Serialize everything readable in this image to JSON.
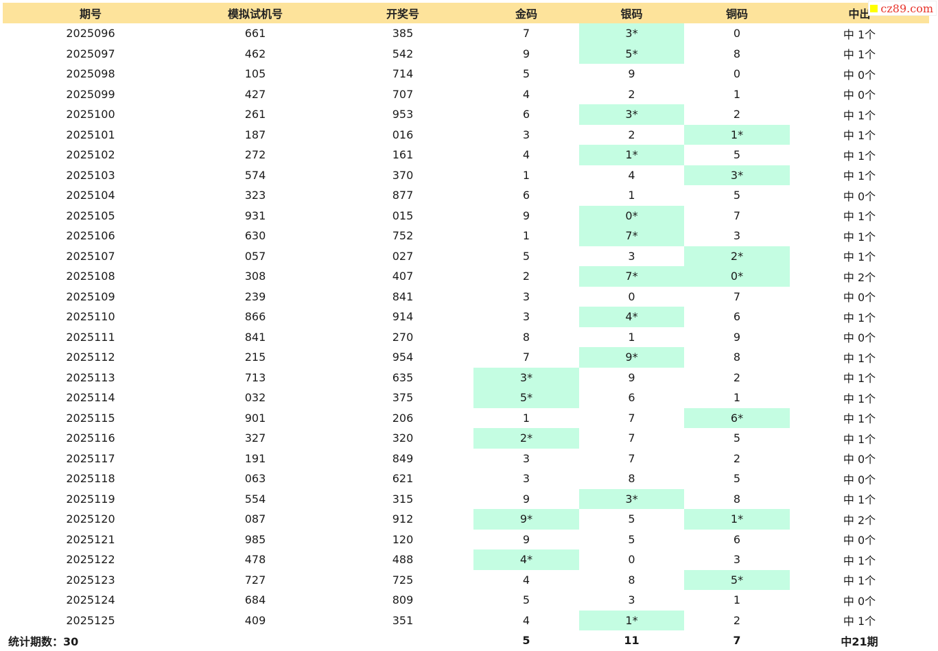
{
  "watermark": "cz89.com",
  "colors": {
    "header_bg": "#fde39b",
    "hit_bg": "#c4fde2"
  },
  "table": {
    "columns": [
      "期号",
      "模拟试机号",
      "开奖号",
      "金码",
      "银码",
      "铜码",
      "中出"
    ],
    "rows": [
      {
        "period": "2025096",
        "sim": "661",
        "draw": "385",
        "gold": "7",
        "silver": "3*",
        "bronze": "0",
        "result": "中 1个"
      },
      {
        "period": "2025097",
        "sim": "462",
        "draw": "542",
        "gold": "9",
        "silver": "5*",
        "bronze": "8",
        "result": "中 1个"
      },
      {
        "period": "2025098",
        "sim": "105",
        "draw": "714",
        "gold": "5",
        "silver": "9",
        "bronze": "0",
        "result": "中 0个"
      },
      {
        "period": "2025099",
        "sim": "427",
        "draw": "707",
        "gold": "4",
        "silver": "2",
        "bronze": "1",
        "result": "中 0个"
      },
      {
        "period": "2025100",
        "sim": "261",
        "draw": "953",
        "gold": "6",
        "silver": "3*",
        "bronze": "2",
        "result": "中 1个"
      },
      {
        "period": "2025101",
        "sim": "187",
        "draw": "016",
        "gold": "3",
        "silver": "2",
        "bronze": "1*",
        "result": "中 1个"
      },
      {
        "period": "2025102",
        "sim": "272",
        "draw": "161",
        "gold": "4",
        "silver": "1*",
        "bronze": "5",
        "result": "中 1个"
      },
      {
        "period": "2025103",
        "sim": "574",
        "draw": "370",
        "gold": "1",
        "silver": "4",
        "bronze": "3*",
        "result": "中 1个"
      },
      {
        "period": "2025104",
        "sim": "323",
        "draw": "877",
        "gold": "6",
        "silver": "1",
        "bronze": "5",
        "result": "中 0个"
      },
      {
        "period": "2025105",
        "sim": "931",
        "draw": "015",
        "gold": "9",
        "silver": "0*",
        "bronze": "7",
        "result": "中 1个"
      },
      {
        "period": "2025106",
        "sim": "630",
        "draw": "752",
        "gold": "1",
        "silver": "7*",
        "bronze": "3",
        "result": "中 1个"
      },
      {
        "period": "2025107",
        "sim": "057",
        "draw": "027",
        "gold": "5",
        "silver": "3",
        "bronze": "2*",
        "result": "中 1个"
      },
      {
        "period": "2025108",
        "sim": "308",
        "draw": "407",
        "gold": "2",
        "silver": "7*",
        "bronze": "0*",
        "result": "中 2个"
      },
      {
        "period": "2025109",
        "sim": "239",
        "draw": "841",
        "gold": "3",
        "silver": "0",
        "bronze": "7",
        "result": "中 0个"
      },
      {
        "period": "2025110",
        "sim": "866",
        "draw": "914",
        "gold": "3",
        "silver": "4*",
        "bronze": "6",
        "result": "中 1个"
      },
      {
        "period": "2025111",
        "sim": "841",
        "draw": "270",
        "gold": "8",
        "silver": "1",
        "bronze": "9",
        "result": "中 0个"
      },
      {
        "period": "2025112",
        "sim": "215",
        "draw": "954",
        "gold": "7",
        "silver": "9*",
        "bronze": "8",
        "result": "中 1个"
      },
      {
        "period": "2025113",
        "sim": "713",
        "draw": "635",
        "gold": "3*",
        "silver": "9",
        "bronze": "2",
        "result": "中 1个"
      },
      {
        "period": "2025114",
        "sim": "032",
        "draw": "375",
        "gold": "5*",
        "silver": "6",
        "bronze": "1",
        "result": "中 1个"
      },
      {
        "period": "2025115",
        "sim": "901",
        "draw": "206",
        "gold": "1",
        "silver": "7",
        "bronze": "6*",
        "result": "中 1个"
      },
      {
        "period": "2025116",
        "sim": "327",
        "draw": "320",
        "gold": "2*",
        "silver": "7",
        "bronze": "5",
        "result": "中 1个"
      },
      {
        "period": "2025117",
        "sim": "191",
        "draw": "849",
        "gold": "3",
        "silver": "7",
        "bronze": "2",
        "result": "中 0个"
      },
      {
        "period": "2025118",
        "sim": "063",
        "draw": "621",
        "gold": "3",
        "silver": "8",
        "bronze": "5",
        "result": "中 0个"
      },
      {
        "period": "2025119",
        "sim": "554",
        "draw": "315",
        "gold": "9",
        "silver": "3*",
        "bronze": "8",
        "result": "中 1个"
      },
      {
        "period": "2025120",
        "sim": "087",
        "draw": "912",
        "gold": "9*",
        "silver": "5",
        "bronze": "1*",
        "result": "中 2个"
      },
      {
        "period": "2025121",
        "sim": "985",
        "draw": "120",
        "gold": "9",
        "silver": "5",
        "bronze": "6",
        "result": "中 0个"
      },
      {
        "period": "2025122",
        "sim": "478",
        "draw": "488",
        "gold": "4*",
        "silver": "0",
        "bronze": "3",
        "result": "中 1个"
      },
      {
        "period": "2025123",
        "sim": "727",
        "draw": "725",
        "gold": "4",
        "silver": "8",
        "bronze": "5*",
        "result": "中 1个"
      },
      {
        "period": "2025124",
        "sim": "684",
        "draw": "809",
        "gold": "5",
        "silver": "3",
        "bronze": "1",
        "result": "中 0个"
      },
      {
        "period": "2025125",
        "sim": "409",
        "draw": "351",
        "gold": "4",
        "silver": "1*",
        "bronze": "2",
        "result": "中 1个"
      }
    ],
    "footer": {
      "label": "统计期数：30",
      "gold_total": "5",
      "silver_total": "11",
      "bronze_total": "7",
      "result_total": "中21期"
    }
  }
}
